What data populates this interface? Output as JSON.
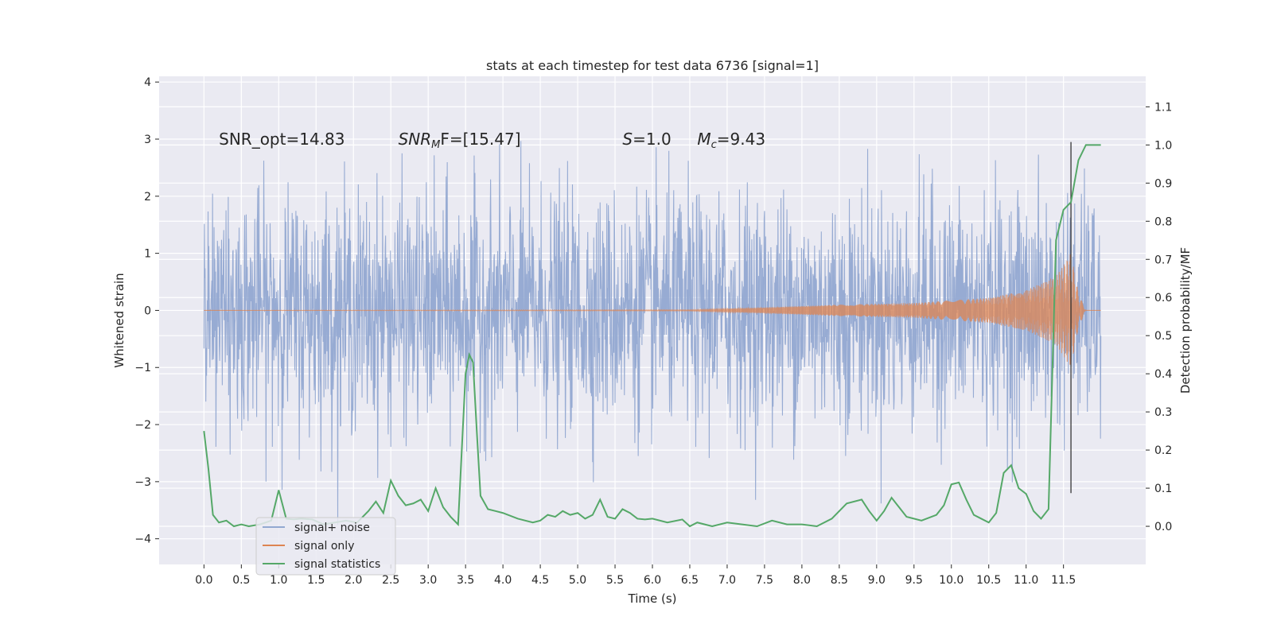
{
  "chart_data": {
    "type": "line",
    "title": "stats at each timestep for test data 6736 [signal=1]",
    "xlabel": "Time (s)",
    "ylabel": "Whitened strain",
    "y2label": "Detection probability/MF",
    "xlim": [
      -0.6,
      12.6
    ],
    "ylim": [
      -4.45,
      4.1
    ],
    "y2lim": [
      -0.1,
      1.18
    ],
    "xticks": [
      0.0,
      0.5,
      1.0,
      1.5,
      2.0,
      2.5,
      3.0,
      3.5,
      4.0,
      4.5,
      5.0,
      5.5,
      6.0,
      6.5,
      7.0,
      7.5,
      8.0,
      8.5,
      9.0,
      9.5,
      10.0,
      10.5,
      11.0,
      11.5
    ],
    "xtick_labels": [
      "0.0",
      "0.5",
      "1.0",
      "1.5",
      "2.0",
      "2.5",
      "3.0",
      "3.5",
      "4.0",
      "4.5",
      "5.0",
      "5.5",
      "6.0",
      "6.5",
      "7.0",
      "7.5",
      "8.0",
      "8.5",
      "9.0",
      "9.5",
      "10.0",
      "10.5",
      "11.0",
      "11.5"
    ],
    "yticks": [
      -4,
      -3,
      -2,
      -1,
      0,
      1,
      2,
      3,
      4
    ],
    "ytick_labels": [
      "−4",
      "−3",
      "−2",
      "−1",
      "0",
      "1",
      "2",
      "3",
      "4"
    ],
    "y2ticks": [
      0.0,
      0.1,
      0.2,
      0.3,
      0.4,
      0.5,
      0.6,
      0.7,
      0.8,
      0.9,
      1.0,
      1.1
    ],
    "y2tick_labels": [
      "0.0",
      "0.1",
      "0.2",
      "0.3",
      "0.4",
      "0.5",
      "0.6",
      "0.7",
      "0.8",
      "0.9",
      "1.0",
      "1.1"
    ],
    "grid": true,
    "legend_position": "lower-left",
    "series": [
      {
        "name": "signal+ noise",
        "color": "#92a8d1",
        "axis": "left",
        "description": "whitened strain data, roughly Gaussian noise with std ~1, spanning 0.0 to 12.0 s",
        "x_range": [
          0.0,
          12.0
        ],
        "typical_peak": 2.4
      },
      {
        "name": "signal only",
        "color": "#dd8452",
        "axis": "left",
        "description": "chirp waveform, amplitude near 0 until ~7.5 s, growing to ~1 at 11.6 s then ringdown",
        "envelope": [
          [
            0.0,
            0.0
          ],
          [
            6.5,
            0.01
          ],
          [
            7.5,
            0.05
          ],
          [
            8.5,
            0.1
          ],
          [
            9.5,
            0.13
          ],
          [
            10.5,
            0.22
          ],
          [
            11.0,
            0.35
          ],
          [
            11.4,
            0.6
          ],
          [
            11.6,
            1.0
          ],
          [
            11.7,
            0.3
          ],
          [
            11.8,
            0.0
          ],
          [
            12.0,
            0.0
          ]
        ]
      },
      {
        "name": "signal statistics",
        "color": "#55a868",
        "axis": "right",
        "x": [
          0.0,
          0.06,
          0.12,
          0.2,
          0.3,
          0.4,
          0.5,
          0.6,
          0.75,
          0.9,
          1.0,
          1.1,
          1.2,
          1.3,
          1.45,
          1.6,
          1.75,
          1.9,
          2.05,
          2.2,
          2.3,
          2.4,
          2.5,
          2.6,
          2.7,
          2.8,
          2.9,
          3.0,
          3.1,
          3.2,
          3.3,
          3.4,
          3.5,
          3.55,
          3.6,
          3.65,
          3.7,
          3.8,
          3.9,
          4.0,
          4.2,
          4.4,
          4.5,
          4.6,
          4.7,
          4.8,
          4.9,
          5.0,
          5.1,
          5.2,
          5.3,
          5.4,
          5.5,
          5.6,
          5.7,
          5.8,
          5.9,
          6.0,
          6.2,
          6.4,
          6.5,
          6.6,
          6.8,
          7.0,
          7.2,
          7.4,
          7.6,
          7.8,
          8.0,
          8.2,
          8.4,
          8.6,
          8.8,
          8.9,
          9.0,
          9.1,
          9.2,
          9.3,
          9.4,
          9.6,
          9.8,
          9.9,
          10.0,
          10.1,
          10.2,
          10.3,
          10.4,
          10.5,
          10.6,
          10.7,
          10.8,
          10.9,
          11.0,
          11.1,
          11.2,
          11.3,
          11.4,
          11.5,
          11.6,
          11.7,
          11.8,
          11.9,
          12.0
        ],
        "values": [
          0.25,
          0.15,
          0.03,
          0.01,
          0.015,
          0.0,
          0.005,
          0.0,
          0.005,
          0.015,
          0.095,
          0.02,
          0.018,
          0.02,
          0.018,
          0.005,
          0.01,
          0.015,
          0.01,
          0.04,
          0.065,
          0.035,
          0.12,
          0.08,
          0.055,
          0.06,
          0.07,
          0.04,
          0.1,
          0.05,
          0.025,
          0.005,
          0.4,
          0.45,
          0.43,
          0.25,
          0.08,
          0.045,
          0.04,
          0.035,
          0.02,
          0.01,
          0.015,
          0.03,
          0.025,
          0.04,
          0.03,
          0.035,
          0.02,
          0.03,
          0.07,
          0.025,
          0.02,
          0.045,
          0.035,
          0.02,
          0.018,
          0.02,
          0.01,
          0.018,
          0.0,
          0.01,
          0.0,
          0.01,
          0.005,
          0.0,
          0.015,
          0.005,
          0.005,
          0.0,
          0.02,
          0.06,
          0.07,
          0.04,
          0.015,
          0.04,
          0.075,
          0.05,
          0.025,
          0.015,
          0.03,
          0.055,
          0.11,
          0.115,
          0.07,
          0.03,
          0.02,
          0.01,
          0.035,
          0.14,
          0.16,
          0.1,
          0.085,
          0.04,
          0.02,
          0.045,
          0.75,
          0.83,
          0.85,
          0.96,
          1.0,
          1.0,
          1.0
        ]
      }
    ],
    "vline": {
      "x": 11.6,
      "color": "#262626"
    },
    "annotations": [
      {
        "text": "SNR_opt=14.83",
        "x": 0.2,
        "y": 3.0
      },
      {
        "text_main": "SNR",
        "text_sub": "M",
        "text_rest": "F=[15.47]",
        "x": 2.6,
        "y": 3.0
      },
      {
        "text_main": "S",
        "text_rest": "=1.0",
        "x": 5.6,
        "y": 3.0
      },
      {
        "text_main": "M",
        "text_sub": "c",
        "text_rest": "=9.43",
        "x": 6.6,
        "y": 3.0
      }
    ],
    "legend": [
      {
        "label": "signal+ noise",
        "color": "#92a8d1"
      },
      {
        "label": "signal only",
        "color": "#dd8452"
      },
      {
        "label": "signal statistics",
        "color": "#55a868"
      }
    ]
  }
}
